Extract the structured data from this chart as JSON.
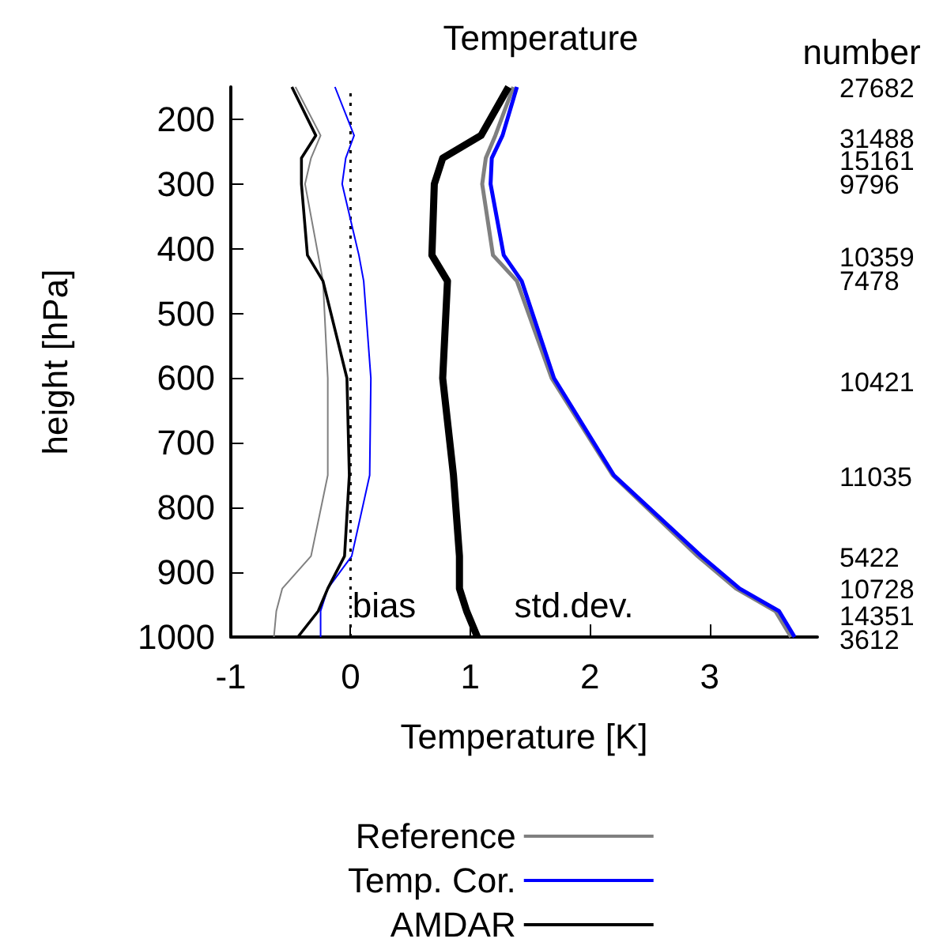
{
  "chart_data": {
    "type": "line",
    "title": "Temperature",
    "xlabel": "Temperature [K]",
    "ylabel": "height [hPa]",
    "xlim": [
      -1,
      3.9
    ],
    "xticks": [
      -1,
      0,
      1,
      2,
      3
    ],
    "ylim": [
      1000,
      150
    ],
    "yticks": [
      200,
      300,
      400,
      500,
      600,
      700,
      800,
      900,
      1000
    ],
    "grid": false,
    "legend": "bottom",
    "marker": "none",
    "line_style": "solid",
    "ref_lines": [
      {
        "axis": "x",
        "value": 0,
        "color": "#000000",
        "line_style": "dotted"
      }
    ],
    "annotations": [
      "number",
      "bias",
      "std.dev.",
      "27682",
      "31488",
      "15161",
      "9796",
      "10359",
      "7478",
      "10421",
      "11035",
      "5422",
      "10728",
      "14351",
      "3612"
    ],
    "series": [
      {
        "name": "Reference",
        "color": "#808080",
        "x": [
          1.36,
          1.21,
          1.13,
          1.1,
          1.19,
          1.39,
          1.68,
          2.19,
          2.9,
          3.22,
          3.55,
          3.68
        ],
        "values": [
          150,
          225,
          260,
          300,
          410,
          450,
          600,
          750,
          875,
          925,
          960,
          1000
        ]
      },
      {
        "name": "Temp. Cor.",
        "color": "#0000ff",
        "x": [
          1.39,
          1.27,
          1.18,
          1.17,
          1.28,
          1.43,
          1.7,
          2.2,
          2.93,
          3.25,
          3.58,
          3.71
        ],
        "values": [
          150,
          225,
          260,
          300,
          410,
          450,
          600,
          750,
          875,
          925,
          960,
          1000
        ]
      },
      {
        "name": "AMDAR",
        "color": "#000000",
        "x": [
          1.32,
          1.09,
          0.77,
          0.7,
          0.68,
          0.81,
          0.77,
          0.86,
          0.91,
          0.91,
          0.97,
          1.06
        ],
        "values": [
          150,
          225,
          260,
          300,
          410,
          450,
          600,
          750,
          875,
          925,
          960,
          1000
        ]
      },
      {
        "color": "#808080",
        "x": [
          -0.46,
          -0.25,
          -0.33,
          -0.38,
          -0.27,
          -0.23,
          -0.19,
          -0.19,
          -0.33,
          -0.57,
          -0.62,
          -0.64
        ],
        "values": [
          150,
          225,
          260,
          300,
          410,
          450,
          600,
          750,
          875,
          925,
          960,
          1000
        ]
      },
      {
        "color": "#0000ff",
        "x": [
          -0.13,
          0.03,
          -0.04,
          -0.07,
          0.07,
          0.11,
          0.17,
          0.16,
          0.01,
          -0.19,
          -0.25,
          -0.25
        ],
        "values": [
          150,
          225,
          260,
          300,
          410,
          450,
          600,
          750,
          875,
          925,
          960,
          1000
        ]
      },
      {
        "color": "#000000",
        "x": [
          -0.49,
          -0.29,
          -0.41,
          -0.41,
          -0.36,
          -0.23,
          -0.03,
          -0.01,
          -0.05,
          -0.19,
          -0.27,
          -0.44
        ],
        "values": [
          150,
          225,
          260,
          300,
          410,
          450,
          600,
          750,
          875,
          925,
          960,
          1000
        ]
      }
    ]
  }
}
